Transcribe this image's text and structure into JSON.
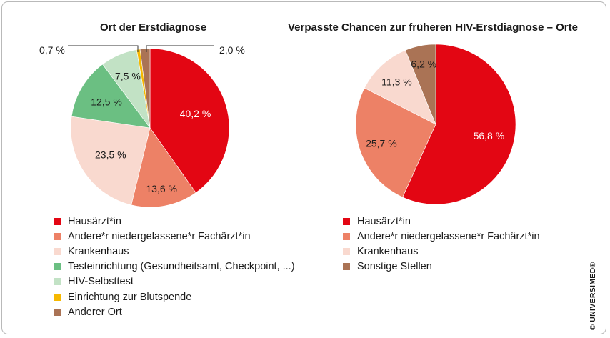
{
  "charts": {
    "left_title": "Ort der Erstdiagnose",
    "right_title": "Verpasste Chancen zur früheren HIV-Erstdiagnose – Orte"
  },
  "copyright": "© UNIVERSIMED®",
  "chart_data": [
    {
      "type": "pie",
      "title": "Ort der Erstdiagnose",
      "categories": [
        "Hausärzt*in",
        "Andere*r niedergelassene*r Fachärzt*in",
        "Krankenhaus",
        "Testeinrichtung (Gesundheitsamt, Checkpoint, ...)",
        "HIV-Selbsttest",
        "Einrichtung zur Blutspende",
        "Anderer Ort"
      ],
      "values": [
        40.2,
        13.6,
        23.5,
        12.5,
        7.5,
        0.7,
        2.0
      ],
      "labels": [
        "40,2 %",
        "13,6 %",
        "23,5 %",
        "12,5 %",
        "7,5 %",
        "0,7 %",
        "2,0 %"
      ],
      "colors": [
        "#e30613",
        "#ed8166",
        "#f9d9cf",
        "#6bbf82",
        "#c2e2c5",
        "#f6b800",
        "#aa7355"
      ],
      "start_angle_deg": 0,
      "direction": "clockwise",
      "legend_position": "bottom"
    },
    {
      "type": "pie",
      "title": "Verpasste Chancen zur früheren HIV-Erstdiagnose – Orte",
      "categories": [
        "Hausärzt*in",
        "Andere*r niedergelassene*r Fachärzt*in",
        "Krankenhaus",
        "Sonstige Stellen"
      ],
      "values": [
        56.8,
        25.7,
        11.3,
        6.2
      ],
      "labels": [
        "56,8 %",
        "25,7 %",
        "11,3 %",
        "6,2 %"
      ],
      "colors": [
        "#e30613",
        "#ed8166",
        "#f9d9cf",
        "#aa7355"
      ],
      "start_angle_deg": 0,
      "direction": "clockwise",
      "legend_position": "bottom"
    }
  ]
}
